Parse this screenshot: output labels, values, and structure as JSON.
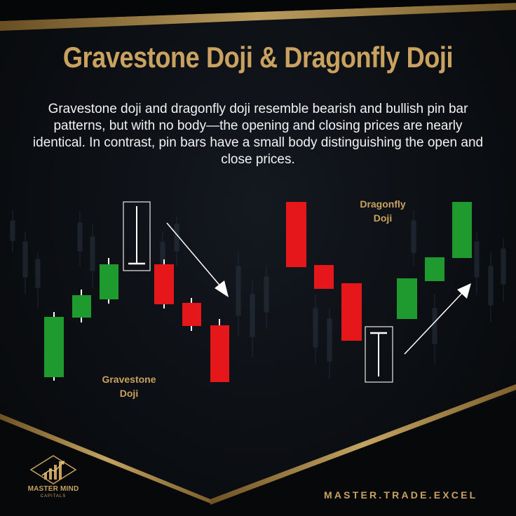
{
  "title": "Gravestone Doji & Dragonfly Doji",
  "description": "Gravestone doji and dragonfly doji resemble bearish and bullish pin bar patterns, but with no body—the opening and closing prices are nearly identical. In contrast, pin bars have a small body distinguishing the open and close prices.",
  "labels": {
    "gravestone_line1": "Gravestone",
    "gravestone_line2": "Doji",
    "dragonfly_line1": "Dragonfly",
    "dragonfly_line2": "Doji"
  },
  "logo": {
    "name": "MASTER MIND",
    "sub": "CAPITALS"
  },
  "footer": {
    "handle": "MASTER.TRADE.EXCEL"
  },
  "colors": {
    "gold": "#c9a25f",
    "bullish": "#1e9a2e",
    "bearish": "#e5171b",
    "background": "#0b0d10"
  }
}
